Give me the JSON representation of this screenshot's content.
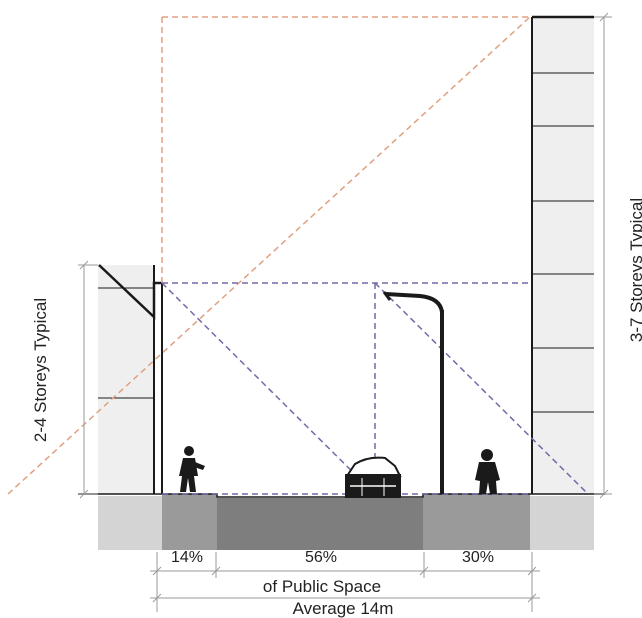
{
  "labels": {
    "left_height": "2-4 Storeys Typical",
    "right_height": "3-7 Storeys Typical",
    "pct_left": "14%",
    "pct_mid": "56%",
    "pct_right": "30%",
    "public_space": "of Public Space",
    "average_width": "Average 14m"
  },
  "colors": {
    "building_fill": "#efefef",
    "ground_light": "#d4d4d4",
    "sidewalk": "#9a9a9a",
    "road": "#7e7e7e",
    "orange_dash": "#e0a080",
    "purple_dash": "#7468a8",
    "line": "#1a1a1a",
    "dim": "#9a9a9a"
  },
  "icons": [
    "pedestrian-icon",
    "car-icon",
    "street-lamp-icon",
    "pedestrian-icon"
  ]
}
